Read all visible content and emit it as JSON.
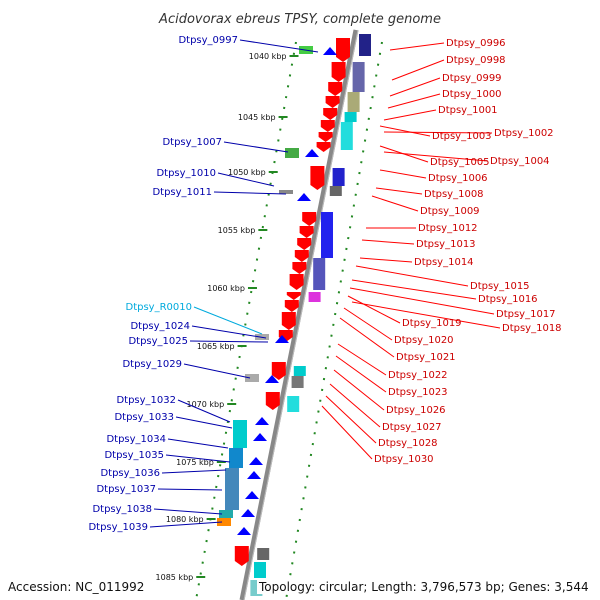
{
  "title": "Acidovorax ebreus TPSY, complete genome",
  "kbp_ticks": [
    "1040 kbp",
    "1045 kbp",
    "1050 kbp",
    "1055 kbp",
    "1060 kbp",
    "1065 kbp",
    "1070 kbp",
    "1075 kbp",
    "1080 kbp",
    "1085 kbp"
  ],
  "genes_right": [
    "Dtpsy_0996",
    "Dtpsy_0998",
    "Dtpsy_0999",
    "Dtpsy_1000",
    "Dtpsy_1001",
    "Dtpsy_1003",
    "Dtpsy_1002",
    "Dtpsy_1005",
    "Dtpsy_1004",
    "Dtpsy_1006",
    "Dtpsy_1008",
    "Dtpsy_1009",
    "Dtpsy_1012",
    "Dtpsy_1013",
    "Dtpsy_1014",
    "Dtpsy_1015",
    "Dtpsy_1016",
    "Dtpsy_1017",
    "Dtpsy_1019",
    "Dtpsy_1018",
    "Dtpsy_1020",
    "Dtpsy_1021",
    "Dtpsy_1022",
    "Dtpsy_1023",
    "Dtpsy_1026",
    "Dtpsy_1027",
    "Dtpsy_1028",
    "Dtpsy_1030"
  ],
  "genes_left": [
    "Dtpsy_0997",
    "Dtpsy_1007",
    "Dtpsy_1010",
    "Dtpsy_1011",
    "Dtpsy_R0010",
    "Dtpsy_1024",
    "Dtpsy_1025",
    "Dtpsy_1029",
    "Dtpsy_1032",
    "Dtpsy_1033",
    "Dtpsy_1034",
    "Dtpsy_1035",
    "Dtpsy_1036",
    "Dtpsy_1037",
    "Dtpsy_1038",
    "Dtpsy_1039"
  ],
  "footer": {
    "accession": "Accession: NC_011992",
    "summary": "Topology: circular; Length: 3,796,573 bp; Genes: 3,544"
  },
  "colors": {
    "forward_gene": "#ff0000",
    "reverse_gene": "#0000ff",
    "right_label": "#cc0000",
    "left_label": "#0000aa",
    "rna_label": "#00aadd",
    "backbone": "#888888",
    "tick": "#228822"
  }
}
